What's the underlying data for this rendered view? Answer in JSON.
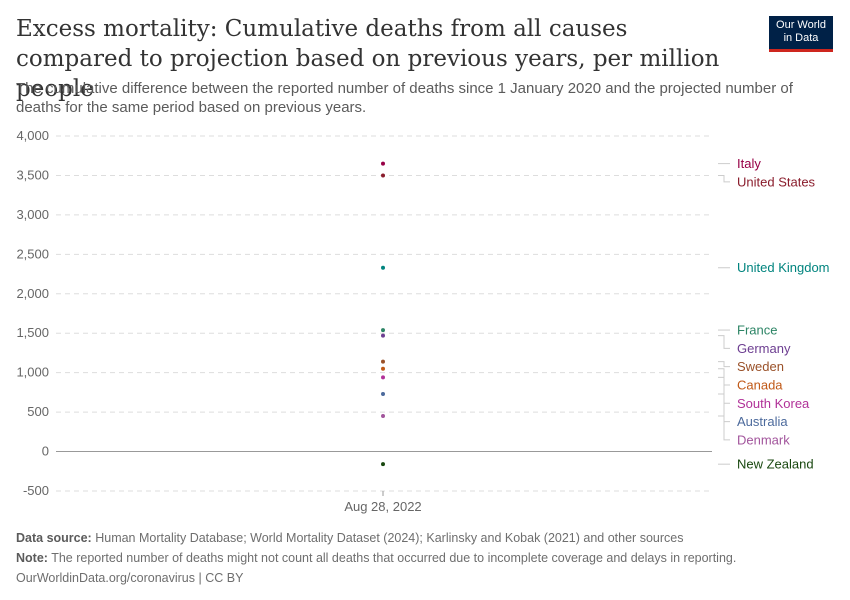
{
  "title": "Excess mortality: Cumulative deaths from all causes compared to projection based on previous years, per million people",
  "subtitle": "The cumulative difference between the reported number of deaths since 1 January 2020 and the projected number of deaths for the same period based on previous years.",
  "logo": {
    "line1": "Our World",
    "line2": "in Data"
  },
  "footer": {
    "source_label": "Data source:",
    "source_text": "Human Mortality Database; World Mortality Dataset (2024); Karlinsky and Kobak (2021) and other sources",
    "note_label": "Note:",
    "note_text": "The reported number of deaths might not count all deaths that occurred due to incomplete coverage and delays in reporting.",
    "url": "OurWorldinData.org/coronavirus | CC BY"
  },
  "chart_data": {
    "type": "scatter",
    "x": [
      "Aug 28, 2022"
    ],
    "xtick_label": "Aug 28, 2022",
    "ylim": [
      -500,
      4000
    ],
    "yticks": [
      -500,
      0,
      500,
      1000,
      1500,
      2000,
      2500,
      3000,
      3500,
      4000
    ],
    "ytick_labels": [
      "-500",
      "0",
      "500",
      "1,000",
      "1,500",
      "2,000",
      "2,500",
      "3,000",
      "3,500",
      "4,000"
    ],
    "grid": true,
    "legend_placement": "right",
    "series": [
      {
        "name": "Italy",
        "value": 3650,
        "color": "#970046"
      },
      {
        "name": "United States",
        "value": 3500,
        "color": "#8a1d2c"
      },
      {
        "name": "United Kingdom",
        "value": 2330,
        "color": "#00847e"
      },
      {
        "name": "France",
        "value": 1540,
        "color": "#2c8465"
      },
      {
        "name": "Germany",
        "value": 1470,
        "color": "#6d3e91"
      },
      {
        "name": "Sweden",
        "value": 1140,
        "color": "#9a5129"
      },
      {
        "name": "Canada",
        "value": 1050,
        "color": "#c05917"
      },
      {
        "name": "South Korea",
        "value": 940,
        "color": "#b13198"
      },
      {
        "name": "Australia",
        "value": 730,
        "color": "#4c6a9c"
      },
      {
        "name": "Denmark",
        "value": 450,
        "color": "#a2559c"
      },
      {
        "name": "New Zealand",
        "value": -160,
        "color": "#18470f"
      }
    ]
  }
}
